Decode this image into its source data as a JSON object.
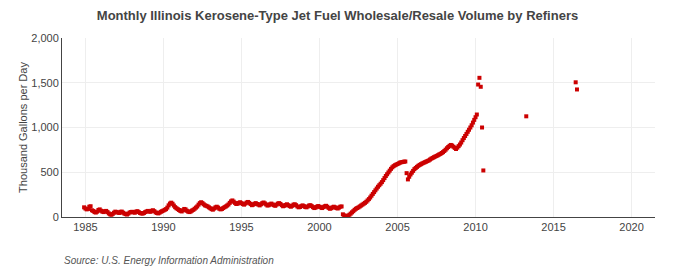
{
  "chart_data": {
    "type": "scatter",
    "title": "Monthly Illinois Kerosene-Type Jet Fuel Wholesale/Resale Volume by Refiners",
    "y_label": "Thousand Gallons per Day",
    "annotations": [
      "Source: U.S. Energy Information Administration"
    ],
    "color": "#cc0000",
    "marker": "square",
    "grid": true,
    "xlim": [
      1983.5,
      2021.5
    ],
    "xticks": [
      1985,
      1990,
      1995,
      2000,
      2005,
      2010,
      2015,
      2020
    ],
    "ylim": [
      0,
      2000
    ],
    "yticks": [
      0,
      500,
      {
        "value": 1000,
        "label": "1,000"
      },
      {
        "value": 1500,
        "label": "1,500"
      },
      {
        "value": 2000,
        "label": "2,000"
      }
    ],
    "x": [
      1984.917,
      1985.0,
      1985.083,
      1985.167,
      1985.25,
      1985.333,
      1985.417,
      1985.5,
      1985.583,
      1985.667,
      1985.75,
      1985.833,
      1985.917,
      1986.0,
      1986.083,
      1986.167,
      1986.25,
      1986.333,
      1986.417,
      1986.5,
      1986.583,
      1986.667,
      1986.75,
      1986.833,
      1986.917,
      1987.0,
      1987.083,
      1987.167,
      1987.25,
      1987.333,
      1987.417,
      1987.5,
      1987.583,
      1987.667,
      1987.75,
      1987.833,
      1987.917,
      1988.0,
      1988.083,
      1988.167,
      1988.25,
      1988.333,
      1988.417,
      1988.5,
      1988.583,
      1988.667,
      1988.75,
      1988.833,
      1988.917,
      1989.0,
      1989.083,
      1989.167,
      1989.25,
      1989.333,
      1989.417,
      1989.5,
      1989.583,
      1989.667,
      1989.75,
      1989.833,
      1989.917,
      1990.0,
      1990.083,
      1990.167,
      1990.25,
      1990.333,
      1990.417,
      1990.5,
      1990.583,
      1990.667,
      1990.75,
      1990.833,
      1990.917,
      1991.0,
      1991.083,
      1991.167,
      1991.25,
      1991.333,
      1991.417,
      1991.5,
      1991.583,
      1991.667,
      1991.75,
      1991.833,
      1991.917,
      1992.0,
      1992.083,
      1992.167,
      1992.25,
      1992.333,
      1992.417,
      1992.5,
      1992.583,
      1992.667,
      1992.75,
      1992.833,
      1992.917,
      1993.0,
      1993.083,
      1993.167,
      1993.25,
      1993.333,
      1993.417,
      1993.5,
      1993.583,
      1993.667,
      1993.75,
      1993.833,
      1993.917,
      1994.0,
      1994.083,
      1994.167,
      1994.25,
      1994.333,
      1994.417,
      1994.5,
      1994.583,
      1994.667,
      1994.75,
      1994.833,
      1994.917,
      1995.0,
      1995.083,
      1995.167,
      1995.25,
      1995.333,
      1995.417,
      1995.5,
      1995.583,
      1995.667,
      1995.75,
      1995.833,
      1995.917,
      1996.0,
      1996.083,
      1996.167,
      1996.25,
      1996.333,
      1996.417,
      1996.5,
      1996.583,
      1996.667,
      1996.75,
      1996.833,
      1996.917,
      1997.0,
      1997.083,
      1997.167,
      1997.25,
      1997.333,
      1997.417,
      1997.5,
      1997.583,
      1997.667,
      1997.75,
      1997.833,
      1997.917,
      1998.0,
      1998.083,
      1998.167,
      1998.25,
      1998.333,
      1998.417,
      1998.5,
      1998.583,
      1998.667,
      1998.75,
      1998.833,
      1998.917,
      1999.0,
      1999.083,
      1999.167,
      1999.25,
      1999.333,
      1999.417,
      1999.5,
      1999.583,
      1999.667,
      1999.75,
      1999.833,
      1999.917,
      2000.0,
      2000.083,
      2000.167,
      2000.25,
      2000.333,
      2000.417,
      2000.5,
      2000.583,
      2000.667,
      2000.75,
      2000.833,
      2000.917,
      2001.0,
      2001.083,
      2001.167,
      2001.25,
      2001.333,
      2001.417,
      2001.5,
      2001.583,
      2001.667,
      2001.75,
      2001.833,
      2001.917,
      2002.0,
      2002.083,
      2002.167,
      2002.25,
      2002.333,
      2002.417,
      2002.5,
      2002.583,
      2002.667,
      2002.75,
      2002.833,
      2002.917,
      2003.0,
      2003.083,
      2003.167,
      2003.25,
      2003.333,
      2003.417,
      2003.5,
      2003.583,
      2003.667,
      2003.75,
      2003.833,
      2003.917,
      2004.0,
      2004.083,
      2004.167,
      2004.25,
      2004.333,
      2004.417,
      2004.5,
      2004.583,
      2004.667,
      2004.75,
      2004.833,
      2004.917,
      2005.0,
      2005.083,
      2005.167,
      2005.25,
      2005.333,
      2005.417,
      2005.5,
      2005.583,
      2005.667,
      2005.75,
      2005.833,
      2005.917,
      2006.0,
      2006.083,
      2006.167,
      2006.25,
      2006.333,
      2006.417,
      2006.5,
      2006.583,
      2006.667,
      2006.75,
      2006.833,
      2006.917,
      2007.0,
      2007.083,
      2007.167,
      2007.25,
      2007.333,
      2007.417,
      2007.5,
      2007.583,
      2007.667,
      2007.75,
      2007.833,
      2007.917,
      2008.0,
      2008.083,
      2008.167,
      2008.25,
      2008.333,
      2008.417,
      2008.5,
      2008.583,
      2008.667,
      2008.75,
      2008.833,
      2008.917,
      2009.0,
      2009.083,
      2009.167,
      2009.25,
      2009.333,
      2009.417,
      2009.5,
      2009.583,
      2009.667,
      2009.75,
      2009.833,
      2009.917,
      2010.0,
      2010.083,
      2010.167,
      2010.25,
      2010.333,
      2010.417,
      2010.5,
      2013.25,
      2016.417,
      2016.5
    ],
    "values": [
      108,
      95,
      85,
      90,
      115,
      120,
      75,
      68,
      55,
      50,
      60,
      78,
      85,
      70,
      60,
      55,
      65,
      68,
      55,
      40,
      30,
      25,
      35,
      48,
      60,
      55,
      50,
      45,
      58,
      60,
      48,
      38,
      32,
      28,
      38,
      50,
      55,
      58,
      52,
      48,
      60,
      65,
      55,
      45,
      40,
      38,
      45,
      55,
      62,
      68,
      62,
      58,
      70,
      75,
      65,
      52,
      45,
      40,
      48,
      58,
      65,
      72,
      80,
      88,
      105,
      130,
      150,
      160,
      148,
      128,
      110,
      98,
      88,
      78,
      68,
      62,
      75,
      90,
      85,
      70,
      60,
      55,
      62,
      72,
      80,
      92,
      105,
      118,
      138,
      155,
      165,
      155,
      142,
      130,
      125,
      118,
      108,
      98,
      88,
      82,
      95,
      108,
      115,
      105,
      92,
      85,
      90,
      100,
      110,
      118,
      128,
      140,
      158,
      175,
      185,
      172,
      158,
      145,
      148,
      158,
      165,
      155,
      145,
      138,
      150,
      162,
      168,
      158,
      145,
      132,
      138,
      148,
      155,
      145,
      138,
      130,
      142,
      155,
      162,
      152,
      140,
      128,
      132,
      142,
      150,
      140,
      132,
      125,
      138,
      150,
      155,
      145,
      132,
      120,
      125,
      135,
      142,
      132,
      122,
      115,
      125,
      138,
      142,
      132,
      118,
      108,
      112,
      122,
      130,
      122,
      112,
      108,
      118,
      128,
      132,
      122,
      110,
      100,
      105,
      115,
      122,
      115,
      108,
      100,
      110,
      120,
      125,
      115,
      102,
      92,
      98,
      108,
      115,
      108,
      100,
      95,
      105,
      115,
      118,
      30,
      18,
      12,
      8,
      15,
      25,
      38,
      52,
      65,
      80,
      92,
      100,
      108,
      118,
      128,
      138,
      148,
      158,
      170,
      185,
      200,
      218,
      238,
      258,
      278,
      298,
      318,
      338,
      355,
      372,
      390,
      412,
      435,
      458,
      478,
      498,
      518,
      538,
      555,
      568,
      578,
      585,
      592,
      600,
      608,
      612,
      615,
      618,
      620,
      490,
      420,
      450,
      475,
      495,
      515,
      535,
      548,
      560,
      572,
      582,
      590,
      598,
      605,
      612,
      618,
      625,
      632,
      642,
      652,
      660,
      668,
      675,
      682,
      690,
      698,
      705,
      715,
      725,
      738,
      752,
      768,
      782,
      795,
      805,
      798,
      785,
      772,
      760,
      775,
      792,
      810,
      832,
      858,
      882,
      905,
      928,
      952,
      975,
      1000,
      1025,
      1055,
      1085,
      1115,
      1145,
      1480,
      1555,
      1455,
      1000,
      520,
      1125,
      1505,
      1425
    ]
  }
}
